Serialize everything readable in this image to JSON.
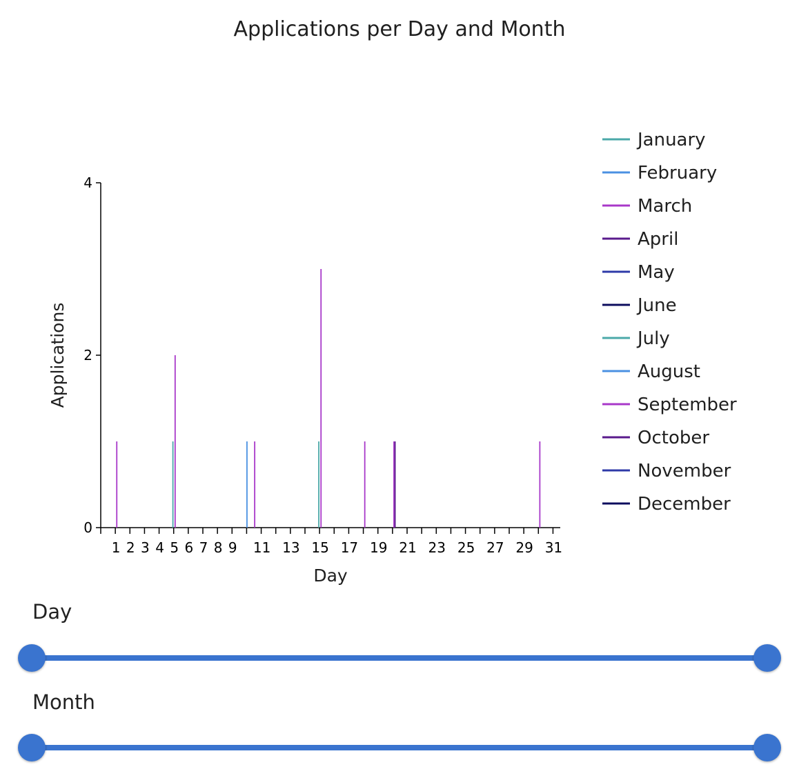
{
  "chart_data": {
    "type": "bar",
    "title": "Applications per Day and Month",
    "xlabel": "Day",
    "ylabel": "Applications",
    "ylim": [
      0,
      4
    ],
    "xlim": [
      1,
      31
    ],
    "y_ticks": [
      0,
      2,
      4
    ],
    "x_tick_labels": [
      "1",
      "2",
      "3",
      "4",
      "5",
      "6",
      "7",
      "8",
      "9",
      "11",
      "13",
      "15",
      "17",
      "19",
      "21",
      "23",
      "25",
      "27",
      "29",
      "31"
    ],
    "grid": false,
    "legend_position": "right",
    "series": [
      {
        "name": "January",
        "color": "#4aa8a8",
        "points": [
          {
            "day": 5,
            "value": 1
          },
          {
            "day": 15,
            "value": 1
          }
        ]
      },
      {
        "name": "February",
        "color": "#4a90e2",
        "points": [
          {
            "day": 10,
            "value": 1
          }
        ]
      },
      {
        "name": "March",
        "color": "#a838c9",
        "points": [
          {
            "day": 1,
            "value": 1
          },
          {
            "day": 5,
            "value": 2
          },
          {
            "day": 15,
            "value": 3
          },
          {
            "day": 18,
            "value": 1
          },
          {
            "day": 20,
            "value": 1
          },
          {
            "day": 30,
            "value": 1
          }
        ]
      },
      {
        "name": "April",
        "color": "#5a1a8c",
        "points": [
          {
            "day": 20,
            "value": 1
          }
        ]
      },
      {
        "name": "May",
        "color": "#2e3aa8",
        "points": []
      },
      {
        "name": "June",
        "color": "#0c0c5e",
        "points": []
      },
      {
        "name": "July",
        "color": "#4aa8a8",
        "points": []
      },
      {
        "name": "August",
        "color": "#4a90e2",
        "points": []
      },
      {
        "name": "September",
        "color": "#a838c9",
        "points": [
          {
            "day": 10,
            "value": 1
          }
        ]
      },
      {
        "name": "October",
        "color": "#5a1a8c",
        "points": []
      },
      {
        "name": "November",
        "color": "#2e3aa8",
        "points": []
      },
      {
        "name": "December",
        "color": "#0c0c5e",
        "points": []
      }
    ]
  },
  "sliders": {
    "day": {
      "label": "Day",
      "min_value": 1,
      "max_value": 31
    },
    "month": {
      "label": "Month",
      "min_value": 1,
      "max_value": 12
    }
  },
  "colors": {
    "accent": "#3a74cf"
  }
}
